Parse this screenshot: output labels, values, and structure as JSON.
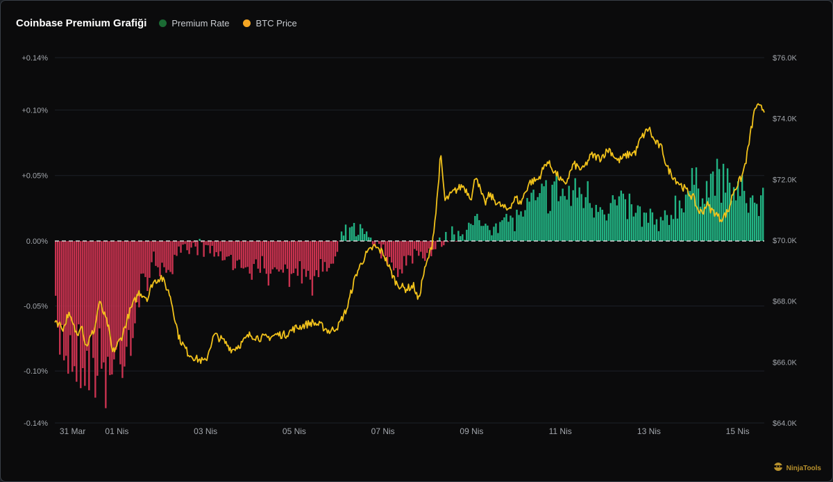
{
  "header": {
    "title": "Coinbase Premium Grafiği"
  },
  "legend": [
    {
      "label": "Premium Rate",
      "color": "#1b6b34"
    },
    {
      "label": "BTC Price",
      "color": "#f5a623"
    }
  ],
  "colors": {
    "positive": "#22b383",
    "negative": "#c8324f",
    "price_line": "#f2c21b",
    "grid": "#1d2128",
    "zero_line": "#d6d6d6"
  },
  "watermark": "NinjaTools",
  "chart_data": {
    "type": "bar",
    "x_tick_labels": [
      "31 Mar",
      "01 Nis",
      "03 Nis",
      "05 Nis",
      "07 Nis",
      "09 Nis",
      "11 Nis",
      "13 Nis",
      "15 Nis"
    ],
    "x_tick_days": [
      0.7,
      1.7,
      3.7,
      5.7,
      7.7,
      9.7,
      11.7,
      13.7,
      15.7
    ],
    "x_range_days": [
      0.3,
      16.3
    ],
    "y_left": {
      "ticks": [
        0.14,
        0.1,
        0.05,
        0,
        -0.05,
        -0.1,
        -0.14
      ],
      "tick_labels": [
        "+0.14%",
        "+0.10%",
        "+0.05%",
        "0.00%",
        "-0.05%",
        "-0.10%",
        "-0.14%"
      ],
      "range": [
        -0.14,
        0.14
      ]
    },
    "y_right": {
      "ticks": [
        76000,
        74000,
        72000,
        70000,
        68000,
        66000,
        64000
      ],
      "tick_labels": [
        "$76.0K",
        "$74.0K",
        "$72.0K",
        "$70.0K",
        "$68.0K",
        "$66.0K",
        "$64.0K"
      ],
      "range": [
        64000,
        76000
      ]
    },
    "series": [
      {
        "name": "Premium Rate",
        "axis": "left",
        "unit": "%",
        "keyframes": [
          [
            0.3,
            -0.085
          ],
          [
            0.6,
            -0.095
          ],
          [
            0.9,
            -0.105
          ],
          [
            1.3,
            -0.11
          ],
          [
            1.6,
            -0.115
          ],
          [
            1.9,
            -0.09
          ],
          [
            2.1,
            -0.07
          ],
          [
            2.3,
            -0.04
          ],
          [
            2.5,
            -0.02
          ],
          [
            2.7,
            -0.025
          ],
          [
            3.0,
            -0.02
          ],
          [
            3.3,
            -0.01
          ],
          [
            3.6,
            -0.005
          ],
          [
            3.9,
            -0.01
          ],
          [
            4.2,
            -0.015
          ],
          [
            4.5,
            -0.02
          ],
          [
            4.8,
            -0.025
          ],
          [
            5.1,
            -0.025
          ],
          [
            5.4,
            -0.03
          ],
          [
            5.7,
            -0.03
          ],
          [
            6.0,
            -0.035
          ],
          [
            6.2,
            -0.03
          ],
          [
            6.4,
            -0.025
          ],
          [
            6.6,
            -0.02
          ],
          [
            6.8,
            0.005
          ],
          [
            7.1,
            0.01
          ],
          [
            7.4,
            0.005
          ],
          [
            7.6,
            -0.005
          ],
          [
            7.8,
            -0.015
          ],
          [
            8.0,
            -0.025
          ],
          [
            8.3,
            -0.015
          ],
          [
            8.6,
            -0.01
          ],
          [
            8.9,
            -0.005
          ],
          [
            9.2,
            0.005
          ],
          [
            9.5,
            0.01
          ],
          [
            9.8,
            0.015
          ],
          [
            10.1,
            0.015
          ],
          [
            10.4,
            0.02
          ],
          [
            10.7,
            0.02
          ],
          [
            11.0,
            0.03
          ],
          [
            11.3,
            0.04
          ],
          [
            11.6,
            0.045
          ],
          [
            11.9,
            0.04
          ],
          [
            12.2,
            0.045
          ],
          [
            12.5,
            0.035
          ],
          [
            12.8,
            0.03
          ],
          [
            13.1,
            0.035
          ],
          [
            13.4,
            0.025
          ],
          [
            13.7,
            0.02
          ],
          [
            14.0,
            0.015
          ],
          [
            14.3,
            0.03
          ],
          [
            14.6,
            0.045
          ],
          [
            14.9,
            0.05
          ],
          [
            15.2,
            0.055
          ],
          [
            15.5,
            0.05
          ],
          [
            15.8,
            0.04
          ],
          [
            16.0,
            0.035
          ],
          [
            16.3,
            0.035
          ]
        ]
      },
      {
        "name": "BTC Price",
        "axis": "right",
        "unit": "USD",
        "keyframes": [
          [
            0.3,
            67400
          ],
          [
            0.5,
            67100
          ],
          [
            0.6,
            67600
          ],
          [
            0.8,
            66900
          ],
          [
            0.9,
            67300
          ],
          [
            1.0,
            66500
          ],
          [
            1.2,
            67100
          ],
          [
            1.3,
            68000
          ],
          [
            1.5,
            67200
          ],
          [
            1.6,
            66300
          ],
          [
            1.8,
            66800
          ],
          [
            2.0,
            67700
          ],
          [
            2.2,
            68300
          ],
          [
            2.4,
            68100
          ],
          [
            2.5,
            68600
          ],
          [
            2.7,
            68800
          ],
          [
            2.9,
            68200
          ],
          [
            3.1,
            66800
          ],
          [
            3.3,
            66300
          ],
          [
            3.5,
            66100
          ],
          [
            3.7,
            66000
          ],
          [
            3.8,
            66500
          ],
          [
            3.9,
            66900
          ],
          [
            4.1,
            66700
          ],
          [
            4.3,
            66400
          ],
          [
            4.5,
            66600
          ],
          [
            4.7,
            66900
          ],
          [
            4.9,
            66800
          ],
          [
            5.1,
            66800
          ],
          [
            5.3,
            66900
          ],
          [
            5.5,
            66900
          ],
          [
            5.7,
            67100
          ],
          [
            5.9,
            67200
          ],
          [
            6.1,
            67300
          ],
          [
            6.3,
            67200
          ],
          [
            6.5,
            67000
          ],
          [
            6.7,
            67200
          ],
          [
            6.8,
            67500
          ],
          [
            6.9,
            67800
          ],
          [
            7.0,
            68400
          ],
          [
            7.1,
            68900
          ],
          [
            7.3,
            69500
          ],
          [
            7.5,
            69800
          ],
          [
            7.7,
            69600
          ],
          [
            7.9,
            68900
          ],
          [
            8.0,
            68600
          ],
          [
            8.2,
            68400
          ],
          [
            8.4,
            68500
          ],
          [
            8.5,
            68000
          ],
          [
            8.6,
            68800
          ],
          [
            8.7,
            69300
          ],
          [
            8.8,
            69800
          ],
          [
            8.9,
            71000
          ],
          [
            9.0,
            72800
          ],
          [
            9.1,
            71300
          ],
          [
            9.3,
            71600
          ],
          [
            9.5,
            71800
          ],
          [
            9.7,
            71400
          ],
          [
            9.8,
            72200
          ],
          [
            9.9,
            71600
          ],
          [
            10.0,
            71200
          ],
          [
            10.1,
            71500
          ],
          [
            10.3,
            71200
          ],
          [
            10.5,
            71000
          ],
          [
            10.7,
            71400
          ],
          [
            10.8,
            71200
          ],
          [
            11.0,
            71900
          ],
          [
            11.2,
            72000
          ],
          [
            11.4,
            72600
          ],
          [
            11.6,
            72200
          ],
          [
            11.8,
            71800
          ],
          [
            12.0,
            72500
          ],
          [
            12.2,
            72300
          ],
          [
            12.4,
            72800
          ],
          [
            12.6,
            72700
          ],
          [
            12.8,
            73000
          ],
          [
            13.0,
            72600
          ],
          [
            13.2,
            72800
          ],
          [
            13.4,
            72900
          ],
          [
            13.5,
            73300
          ],
          [
            13.7,
            73700
          ],
          [
            13.8,
            73300
          ],
          [
            14.0,
            73000
          ],
          [
            14.1,
            72400
          ],
          [
            14.3,
            72000
          ],
          [
            14.5,
            71700
          ],
          [
            14.7,
            71400
          ],
          [
            14.8,
            71000
          ],
          [
            14.9,
            70900
          ],
          [
            15.0,
            71200
          ],
          [
            15.1,
            71000
          ],
          [
            15.2,
            70900
          ],
          [
            15.3,
            70700
          ],
          [
            15.4,
            70800
          ],
          [
            15.5,
            71000
          ],
          [
            15.6,
            71600
          ],
          [
            15.8,
            72100
          ],
          [
            15.9,
            72700
          ],
          [
            16.0,
            73600
          ],
          [
            16.1,
            74400
          ],
          [
            16.3,
            74300
          ]
        ]
      }
    ]
  }
}
